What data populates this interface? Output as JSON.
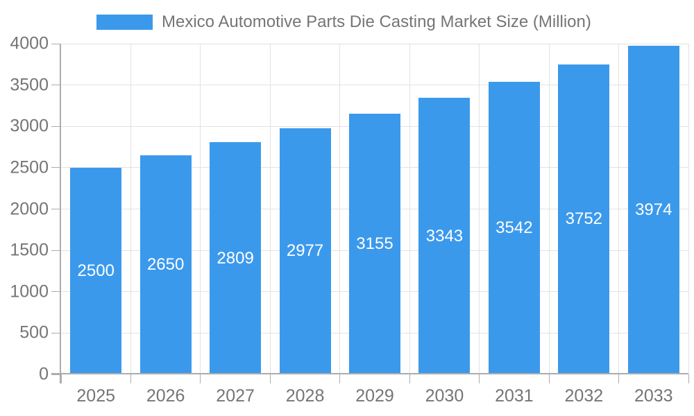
{
  "chart_data": {
    "type": "bar",
    "title": "Mexico Automotive Parts Die Casting Market Size (Million)",
    "categories": [
      "2025",
      "2026",
      "2027",
      "2028",
      "2029",
      "2030",
      "2031",
      "2032",
      "2033"
    ],
    "values": [
      2500,
      2650,
      2809,
      2977,
      3155,
      3343,
      3542,
      3752,
      3974
    ],
    "xlabel": "",
    "ylabel": "",
    "ylim": [
      0,
      4000
    ],
    "yticks": [
      0,
      500,
      1000,
      1500,
      2000,
      2500,
      3000,
      3500,
      4000
    ],
    "grid": true,
    "legend_position": "top",
    "data_labels": "inside-center"
  },
  "colors": {
    "bar": "#3B99EC",
    "bar_label_text": "#FFFFFF",
    "axis_text": "#757575",
    "title_text": "#757575",
    "gridline": "#E2E2E2",
    "axis_line": "#ACACAC"
  }
}
